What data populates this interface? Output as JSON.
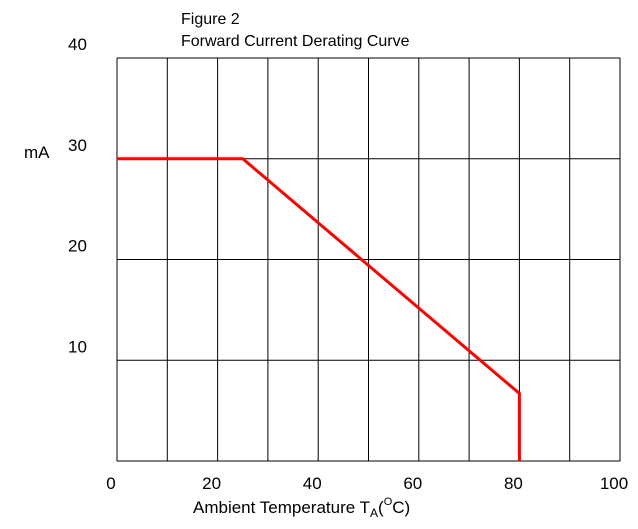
{
  "chart_data": {
    "type": "line",
    "figure_label": "Figure 2",
    "title": "Forward Current Derating Curve",
    "xlabel": {
      "main": "Ambient Temperature T",
      "subscript": "A",
      "open": "(",
      "superscript": "O",
      "close": "C)"
    },
    "ylabel": "mA",
    "xlim": [
      0,
      100
    ],
    "ylim": [
      0,
      40
    ],
    "x_ticks": [
      0,
      20,
      40,
      60,
      80,
      100
    ],
    "y_ticks": [
      10,
      20,
      30,
      40
    ],
    "x_gridlines": [
      0,
      10,
      20,
      30,
      40,
      50,
      60,
      70,
      80,
      90,
      100
    ],
    "y_gridlines": [
      0,
      10,
      20,
      30,
      40
    ],
    "grid": true,
    "series": [
      {
        "color": "#ff0000",
        "x": [
          0,
          25,
          80,
          80
        ],
        "y": [
          30,
          30,
          6.7,
          0
        ]
      }
    ]
  }
}
